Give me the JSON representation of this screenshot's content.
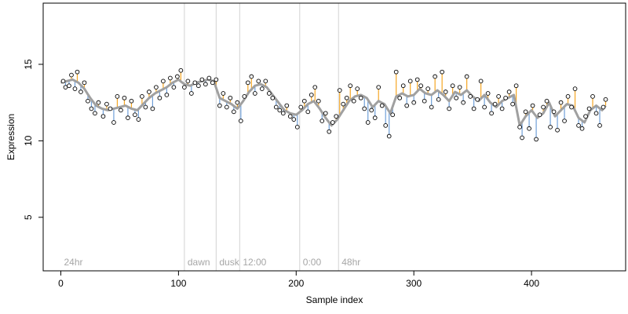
{
  "chart_data": {
    "type": "scatter",
    "title": "",
    "xlabel": "Sample index",
    "ylabel": "Expression",
    "xlim": [
      -15,
      480
    ],
    "ylim": [
      1.5,
      19
    ],
    "x_ticks": [
      0,
      100,
      200,
      300,
      400
    ],
    "y_ticks": [
      5,
      10,
      15
    ],
    "grid": false,
    "phase_markers": [
      {
        "label": "24hr",
        "x": 0
      },
      {
        "label": "dawn",
        "x": 105
      },
      {
        "label": "dusk",
        "x": 132
      },
      {
        "label": "12:00",
        "x": 152
      },
      {
        "label": "0:00",
        "x": 203
      },
      {
        "label": "48hr",
        "x": 236
      }
    ],
    "colors": {
      "trend": "#a0a0a0",
      "above": "#f5a623",
      "below": "#6f9fd8",
      "point_fill": "#ffffff",
      "point_edge": "#000000",
      "marker": "#d3d3d3"
    },
    "anchors": [
      [
        0,
        13.8
      ],
      [
        5,
        13.9
      ],
      [
        10,
        14.0
      ],
      [
        15,
        13.8
      ],
      [
        20,
        13.4
      ],
      [
        25,
        12.8
      ],
      [
        30,
        12.3
      ],
      [
        35,
        12.1
      ],
      [
        40,
        12.0
      ],
      [
        45,
        12.1
      ],
      [
        50,
        12.2
      ],
      [
        55,
        12.3
      ],
      [
        60,
        12.1
      ],
      [
        65,
        12.0
      ],
      [
        70,
        12.4
      ],
      [
        75,
        12.8
      ],
      [
        80,
        13.1
      ],
      [
        85,
        13.3
      ],
      [
        90,
        13.5
      ],
      [
        95,
        13.8
      ],
      [
        100,
        14.0
      ],
      [
        105,
        13.7
      ],
      [
        110,
        13.6
      ],
      [
        115,
        13.8
      ],
      [
        120,
        13.9
      ],
      [
        125,
        14.0
      ],
      [
        130,
        13.9
      ],
      [
        135,
        12.8
      ],
      [
        140,
        12.6
      ],
      [
        145,
        12.4
      ],
      [
        150,
        12.1
      ],
      [
        155,
        12.6
      ],
      [
        160,
        13.2
      ],
      [
        165,
        13.6
      ],
      [
        170,
        13.7
      ],
      [
        175,
        13.5
      ],
      [
        180,
        13.0
      ],
      [
        185,
        12.5
      ],
      [
        190,
        12.0
      ],
      [
        195,
        11.8
      ],
      [
        200,
        11.7
      ],
      [
        205,
        12.0
      ],
      [
        210,
        12.4
      ],
      [
        215,
        12.6
      ],
      [
        220,
        12.1
      ],
      [
        225,
        11.5
      ],
      [
        230,
        11.0
      ],
      [
        235,
        11.4
      ],
      [
        240,
        12.0
      ],
      [
        245,
        12.6
      ],
      [
        250,
        12.9
      ],
      [
        255,
        13.0
      ],
      [
        260,
        12.8
      ],
      [
        265,
        12.2
      ],
      [
        270,
        12.6
      ],
      [
        275,
        12.4
      ],
      [
        280,
        11.8
      ],
      [
        285,
        12.9
      ],
      [
        290,
        13.1
      ],
      [
        295,
        12.9
      ],
      [
        300,
        13.0
      ],
      [
        305,
        13.4
      ],
      [
        310,
        13.1
      ],
      [
        315,
        13.0
      ],
      [
        320,
        13.3
      ],
      [
        325,
        13.0
      ],
      [
        330,
        12.6
      ],
      [
        335,
        13.2
      ],
      [
        340,
        13.0
      ],
      [
        345,
        13.3
      ],
      [
        350,
        12.9
      ],
      [
        355,
        12.6
      ],
      [
        360,
        13.0
      ],
      [
        365,
        12.5
      ],
      [
        370,
        12.2
      ],
      [
        375,
        12.6
      ],
      [
        380,
        12.8
      ],
      [
        385,
        13.0
      ],
      [
        390,
        11.0
      ],
      [
        395,
        11.6
      ],
      [
        400,
        12.0
      ],
      [
        405,
        11.5
      ],
      [
        410,
        11.8
      ],
      [
        415,
        12.5
      ],
      [
        420,
        11.6
      ],
      [
        425,
        12.0
      ],
      [
        430,
        12.4
      ],
      [
        435,
        12.3
      ],
      [
        440,
        11.5
      ],
      [
        445,
        11.2
      ],
      [
        450,
        12.0
      ],
      [
        455,
        12.3
      ],
      [
        460,
        12.0
      ],
      [
        463,
        12.3
      ]
    ],
    "points": [
      [
        2,
        13.9
      ],
      [
        4,
        13.5
      ],
      [
        7,
        13.6
      ],
      [
        9,
        14.3
      ],
      [
        12,
        13.4
      ],
      [
        14,
        14.5
      ],
      [
        17,
        13.2
      ],
      [
        20,
        13.8
      ],
      [
        23,
        12.6
      ],
      [
        26,
        12.1
      ],
      [
        29,
        11.8
      ],
      [
        32,
        12.5
      ],
      [
        36,
        11.6
      ],
      [
        39,
        12.4
      ],
      [
        42,
        12.1
      ],
      [
        45,
        11.2
      ],
      [
        48,
        12.9
      ],
      [
        51,
        12.0
      ],
      [
        54,
        12.8
      ],
      [
        57,
        11.5
      ],
      [
        60,
        12.6
      ],
      [
        63,
        11.7
      ],
      [
        66,
        11.4
      ],
      [
        69,
        12.9
      ],
      [
        72,
        12.2
      ],
      [
        75,
        13.2
      ],
      [
        78,
        12.1
      ],
      [
        81,
        13.5
      ],
      [
        84,
        12.8
      ],
      [
        87,
        13.9
      ],
      [
        90,
        13.0
      ],
      [
        93,
        14.1
      ],
      [
        96,
        13.5
      ],
      [
        99,
        14.2
      ],
      [
        102,
        14.6
      ],
      [
        105,
        13.5
      ],
      [
        108,
        13.9
      ],
      [
        111,
        13.1
      ],
      [
        114,
        13.8
      ],
      [
        117,
        13.6
      ],
      [
        120,
        14.0
      ],
      [
        123,
        13.7
      ],
      [
        126,
        14.1
      ],
      [
        129,
        13.8
      ],
      [
        132,
        14.0
      ],
      [
        135,
        12.3
      ],
      [
        138,
        13.1
      ],
      [
        141,
        12.2
      ],
      [
        144,
        12.8
      ],
      [
        147,
        11.9
      ],
      [
        150,
        12.5
      ],
      [
        153,
        11.3
      ],
      [
        156,
        12.9
      ],
      [
        159,
        13.8
      ],
      [
        162,
        14.2
      ],
      [
        165,
        13.1
      ],
      [
        168,
        13.9
      ],
      [
        171,
        13.4
      ],
      [
        174,
        13.9
      ],
      [
        177,
        13.1
      ],
      [
        180,
        12.8
      ],
      [
        183,
        12.2
      ],
      [
        186,
        12.0
      ],
      [
        189,
        11.8
      ],
      [
        192,
        12.3
      ],
      [
        195,
        11.6
      ],
      [
        198,
        11.4
      ],
      [
        201,
        10.9
      ],
      [
        204,
        12.2
      ],
      [
        207,
        12.6
      ],
      [
        210,
        11.9
      ],
      [
        213,
        13.0
      ],
      [
        216,
        13.5
      ],
      [
        219,
        12.6
      ],
      [
        222,
        11.3
      ],
      [
        225,
        11.8
      ],
      [
        228,
        10.6
      ],
      [
        231,
        11.2
      ],
      [
        234,
        11.6
      ],
      [
        237,
        13.3
      ],
      [
        240,
        12.4
      ],
      [
        243,
        12.8
      ],
      [
        246,
        13.6
      ],
      [
        249,
        12.6
      ],
      [
        252,
        13.4
      ],
      [
        255,
        12.8
      ],
      [
        258,
        12.1
      ],
      [
        261,
        11.2
      ],
      [
        264,
        12.0
      ],
      [
        267,
        11.5
      ],
      [
        270,
        13.5
      ],
      [
        273,
        12.3
      ],
      [
        276,
        11.0
      ],
      [
        279,
        10.3
      ],
      [
        282,
        11.7
      ],
      [
        285,
        14.5
      ],
      [
        288,
        12.8
      ],
      [
        291,
        13.6
      ],
      [
        294,
        12.3
      ],
      [
        297,
        13.9
      ],
      [
        300,
        12.5
      ],
      [
        303,
        14.0
      ],
      [
        306,
        13.6
      ],
      [
        309,
        12.6
      ],
      [
        312,
        13.4
      ],
      [
        315,
        12.2
      ],
      [
        318,
        14.2
      ],
      [
        321,
        12.7
      ],
      [
        324,
        14.5
      ],
      [
        327,
        13.2
      ],
      [
        330,
        12.1
      ],
      [
        333,
        13.6
      ],
      [
        336,
        12.8
      ],
      [
        339,
        13.5
      ],
      [
        342,
        12.5
      ],
      [
        345,
        14.2
      ],
      [
        348,
        12.9
      ],
      [
        351,
        12.1
      ],
      [
        354,
        12.7
      ],
      [
        357,
        13.9
      ],
      [
        360,
        12.2
      ],
      [
        363,
        13.1
      ],
      [
        366,
        11.8
      ],
      [
        369,
        12.4
      ],
      [
        372,
        12.9
      ],
      [
        375,
        12.1
      ],
      [
        378,
        12.8
      ],
      [
        381,
        13.2
      ],
      [
        384,
        12.4
      ],
      [
        387,
        13.6
      ],
      [
        390,
        10.9
      ],
      [
        392,
        10.2
      ],
      [
        395,
        11.9
      ],
      [
        398,
        10.8
      ],
      [
        401,
        12.3
      ],
      [
        404,
        10.1
      ],
      [
        407,
        11.7
      ],
      [
        410,
        12.2
      ],
      [
        413,
        12.6
      ],
      [
        416,
        10.9
      ],
      [
        419,
        11.9
      ],
      [
        422,
        10.7
      ],
      [
        425,
        12.5
      ],
      [
        428,
        11.3
      ],
      [
        431,
        12.9
      ],
      [
        434,
        12.2
      ],
      [
        437,
        13.4
      ],
      [
        440,
        11.0
      ],
      [
        443,
        10.8
      ],
      [
        446,
        11.6
      ],
      [
        449,
        12.1
      ],
      [
        452,
        12.9
      ],
      [
        455,
        11.8
      ],
      [
        458,
        11.0
      ],
      [
        461,
        12.2
      ],
      [
        463,
        12.7
      ]
    ]
  }
}
